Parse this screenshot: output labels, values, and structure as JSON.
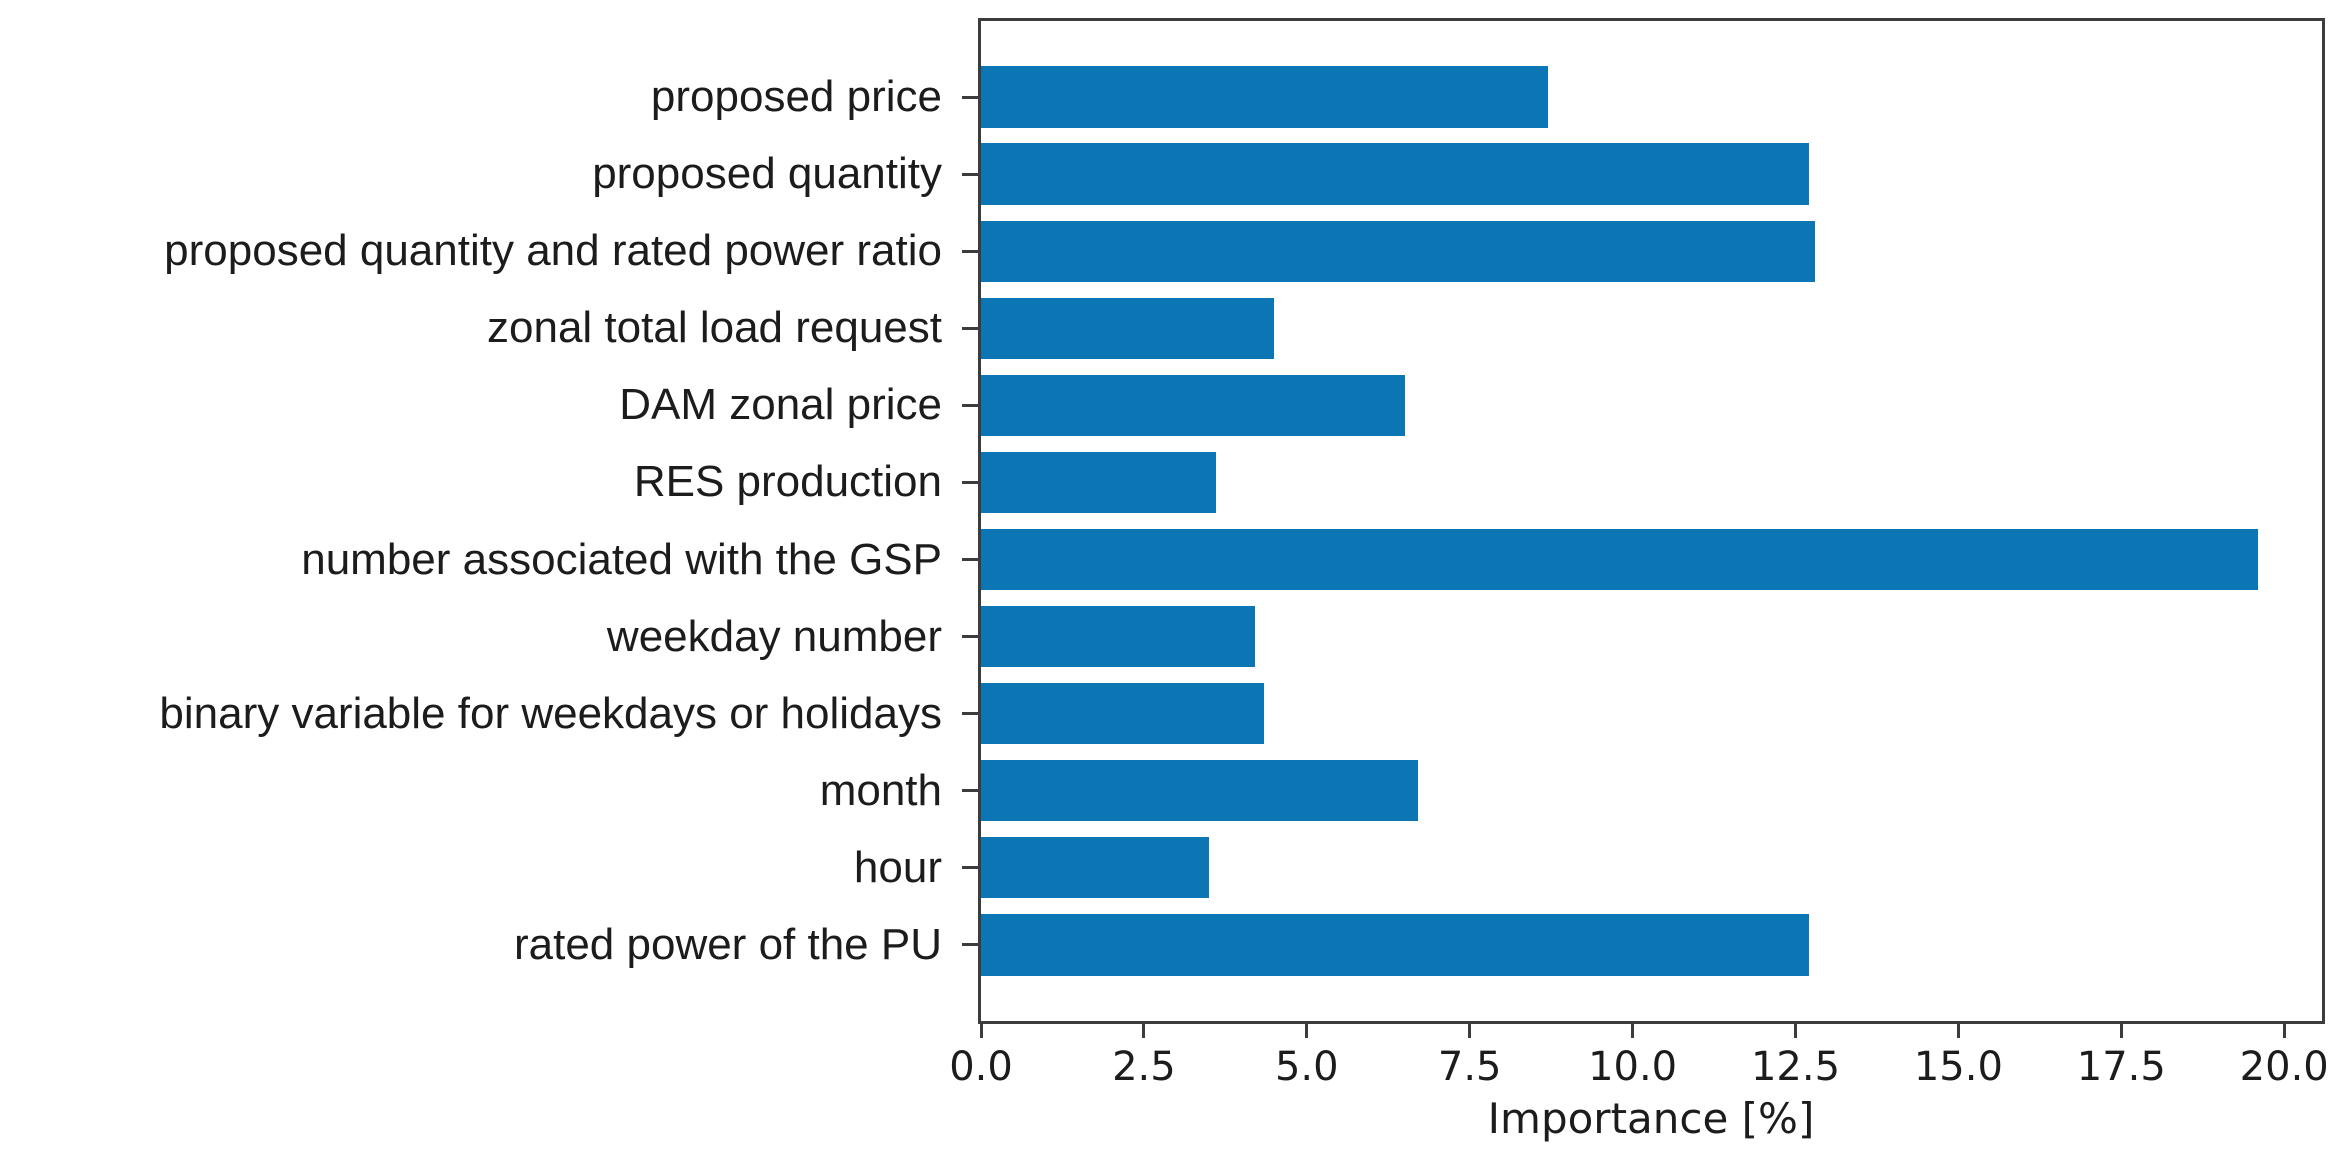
{
  "chart_data": {
    "type": "bar",
    "orientation": "horizontal",
    "title": "",
    "xlabel": "Importance [%]",
    "ylabel": "",
    "categories": [
      "proposed price",
      "proposed quantity",
      "proposed quantity and rated power ratio",
      "zonal total load request",
      "DAM zonal price",
      "RES production",
      "number associated with the GSP",
      "weekday number",
      "binary variable for weekdays or holidays",
      "month",
      "hour",
      "rated power of the PU"
    ],
    "values": [
      8.7,
      12.7,
      12.8,
      4.5,
      6.5,
      3.6,
      19.6,
      4.2,
      4.35,
      6.7,
      3.5,
      12.7
    ],
    "xlim": [
      0,
      20.58
    ],
    "xticks": [
      "0.0",
      "2.5",
      "5.0",
      "7.5",
      "10.0",
      "12.5",
      "15.0",
      "17.5",
      "20.0"
    ],
    "xtick_values": [
      0,
      2.5,
      5,
      7.5,
      10,
      12.5,
      15,
      17.5,
      20
    ],
    "grid": false,
    "legend": null,
    "bar_color": "#0c76b4",
    "axis_color": "#3c3c3c",
    "text_color": "#1c1c1c",
    "background": "#ffffff"
  }
}
